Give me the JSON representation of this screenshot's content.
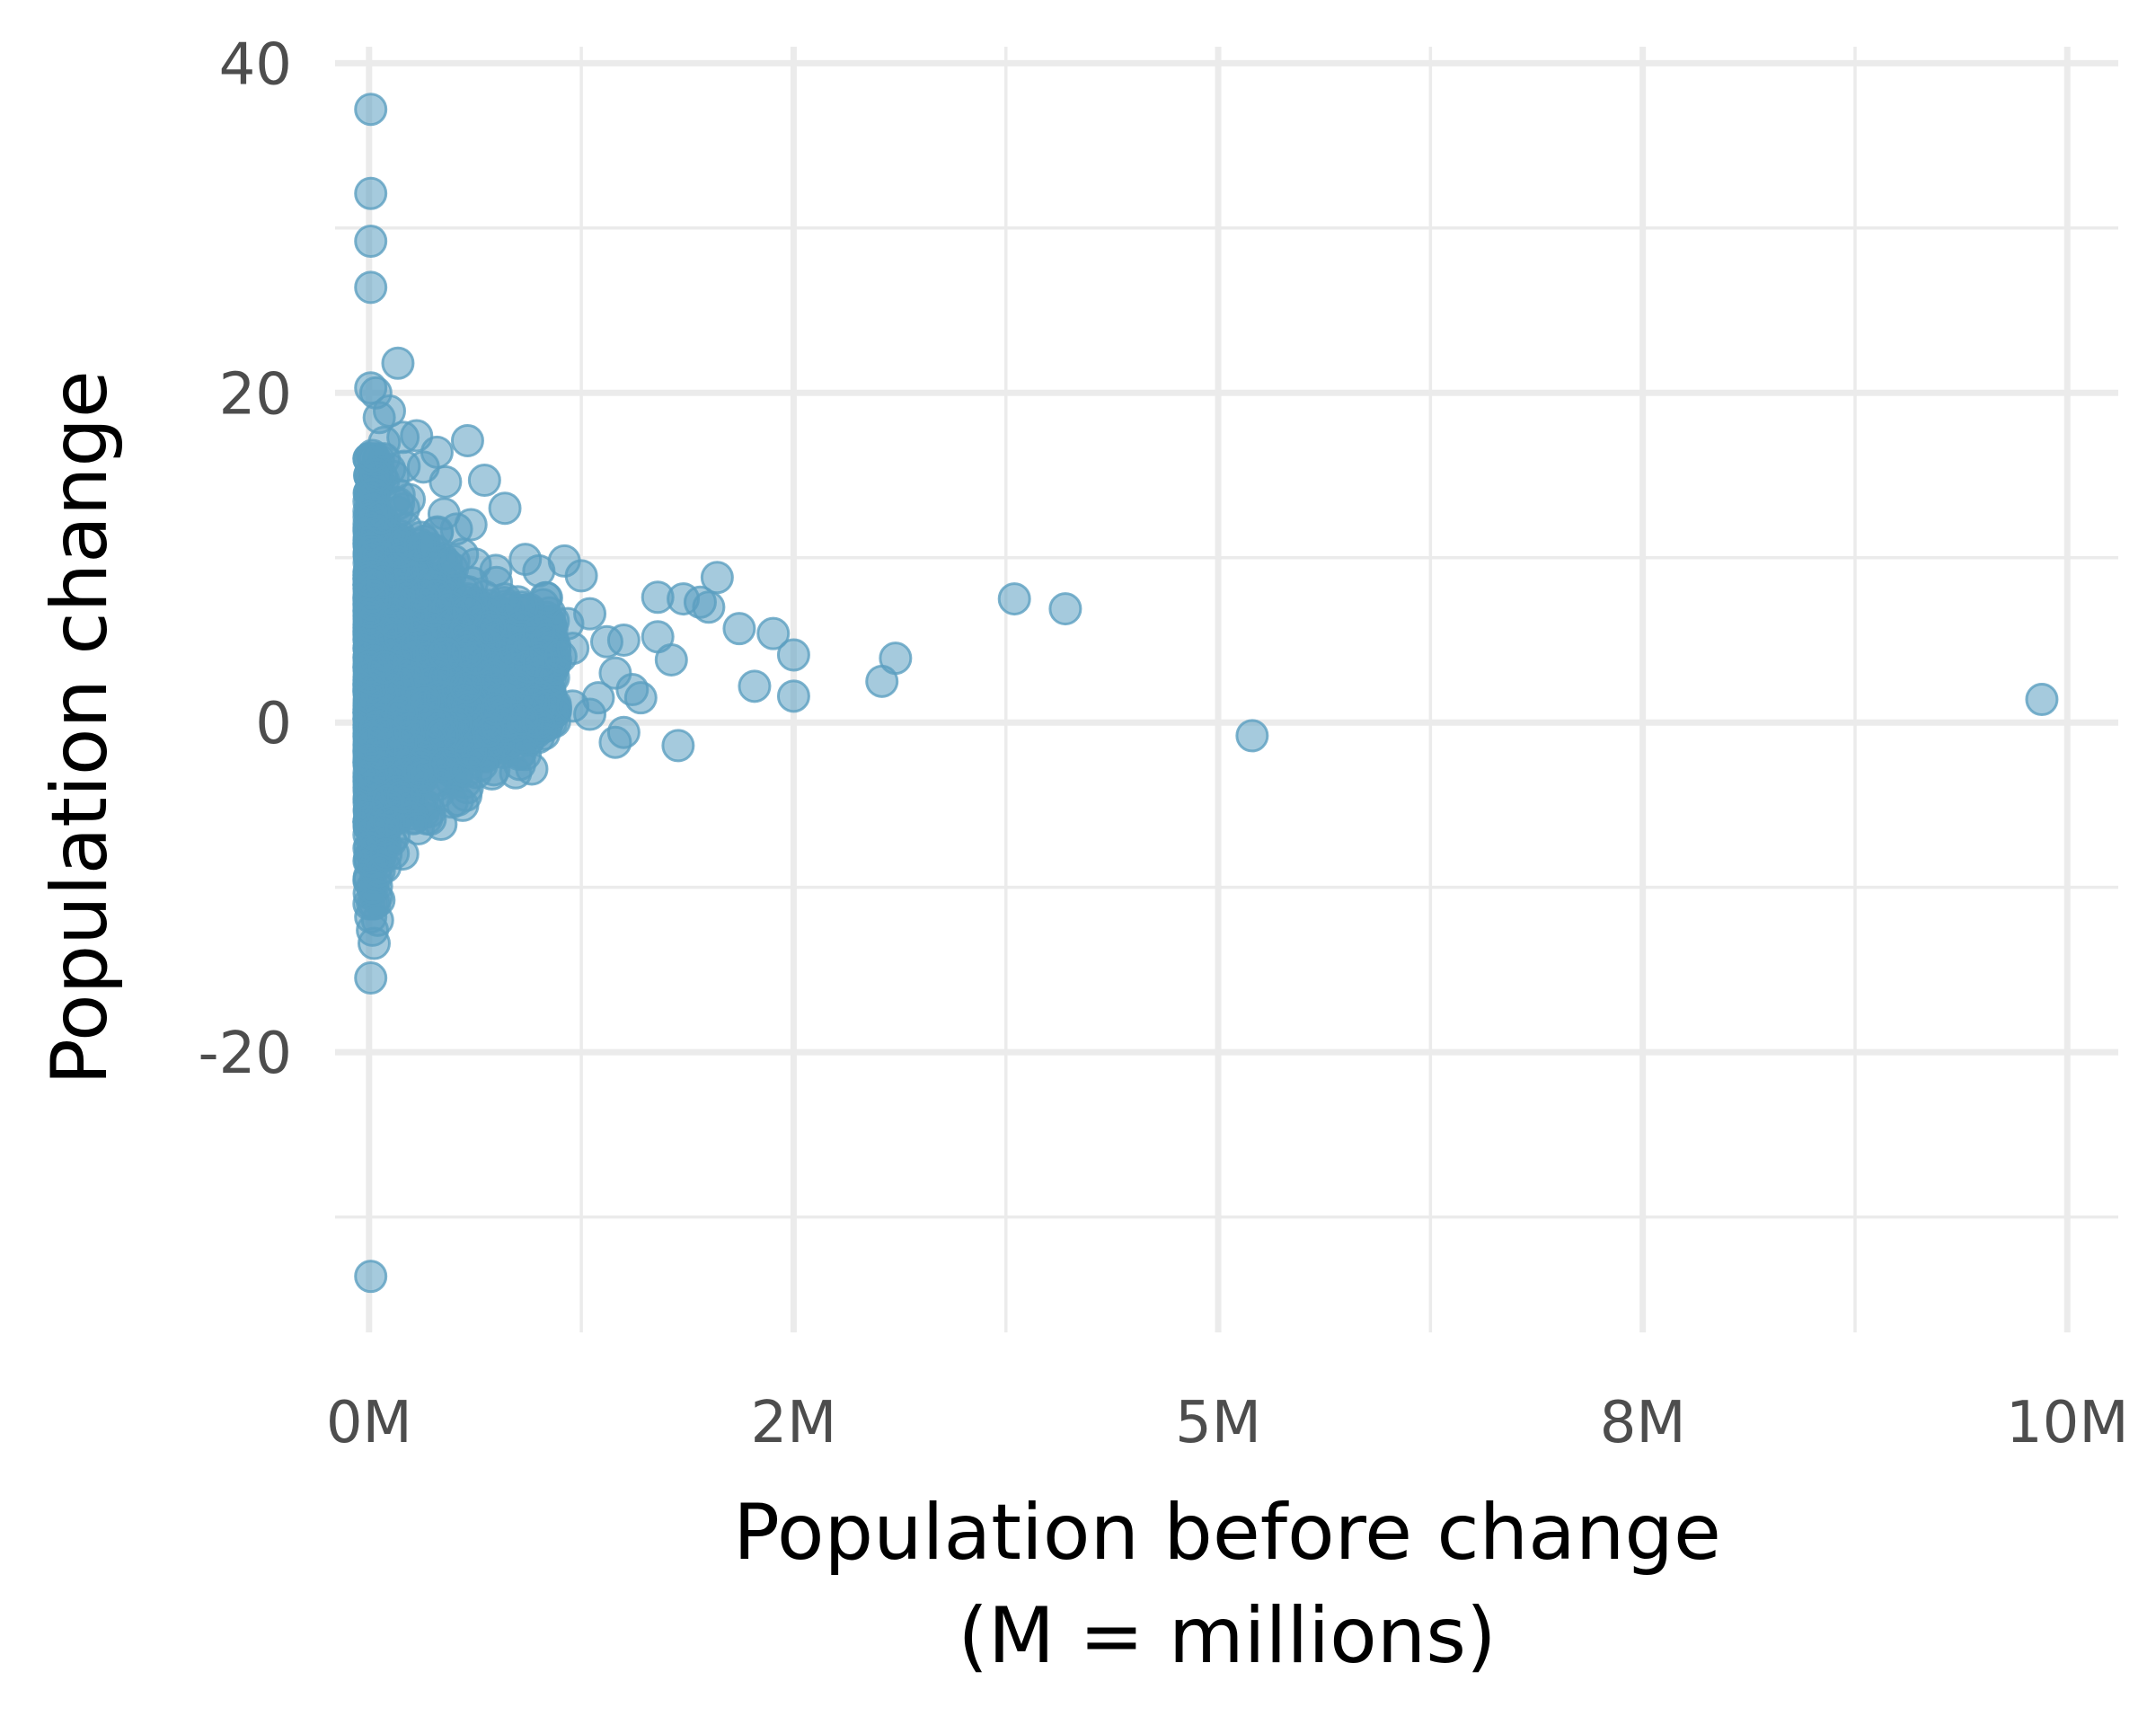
{
  "chart_data": {
    "type": "scatter",
    "title": "",
    "xlabel_lines": [
      "Population before change",
      "(M = millions)"
    ],
    "ylabel": "Population change",
    "xlim": [
      -0.2,
      10.3
    ],
    "ylim": [
      -37,
      41
    ],
    "x_ticks": [
      {
        "value": 0,
        "label": "0M"
      },
      {
        "value": 2.5,
        "label": "2M"
      },
      {
        "value": 5,
        "label": "5M"
      },
      {
        "value": 7.5,
        "label": "8M"
      },
      {
        "value": 10,
        "label": "10M"
      }
    ],
    "y_ticks": [
      {
        "value": -20,
        "label": "-20"
      },
      {
        "value": 0,
        "label": "0"
      },
      {
        "value": 20,
        "label": "20"
      },
      {
        "value": 40,
        "label": "40"
      }
    ],
    "grid": true,
    "legend": "none",
    "point_color": "#5b9fc1",
    "point_opacity": 0.55,
    "series": [
      {
        "x_unit": "millions",
        "points": [
          [
            0.01,
            37.2
          ],
          [
            0.01,
            32.1
          ],
          [
            0.01,
            29.2
          ],
          [
            0.01,
            26.4
          ],
          [
            0.01,
            20.3
          ],
          [
            0.04,
            20.0
          ],
          [
            0.17,
            21.8
          ],
          [
            0.06,
            18.5
          ],
          [
            0.12,
            18.9
          ],
          [
            0.02,
            16.2
          ],
          [
            0.2,
            17.3
          ],
          [
            0.28,
            17.4
          ],
          [
            0.09,
            17.0
          ],
          [
            0.4,
            16.4
          ],
          [
            0.58,
            17.1
          ],
          [
            0.32,
            15.5
          ],
          [
            0.68,
            14.7
          ],
          [
            0.45,
            14.6
          ],
          [
            0.8,
            13.0
          ],
          [
            0.6,
            12.0
          ],
          [
            0.4,
            11.5
          ],
          [
            0.3,
            10.8
          ],
          [
            0.55,
            10.2
          ],
          [
            0.5,
            9.8
          ],
          [
            0.92,
            9.9
          ],
          [
            1.15,
            9.8
          ],
          [
            1.25,
            8.9
          ],
          [
            1.0,
            9.2
          ],
          [
            0.75,
            8.5
          ],
          [
            0.8,
            7.5
          ],
          [
            0.9,
            7.0
          ],
          [
            1.3,
            6.6
          ],
          [
            1.17,
            6.0
          ],
          [
            1.0,
            5.5
          ],
          [
            1.05,
            5.0
          ],
          [
            1.2,
            4.5
          ],
          [
            1.13,
            4.0
          ],
          [
            1.0,
            3.7
          ],
          [
            1.4,
            4.9
          ],
          [
            1.5,
            5.0
          ],
          [
            1.45,
            3.0
          ],
          [
            1.55,
            2.0
          ],
          [
            1.6,
            1.5
          ],
          [
            1.35,
            1.5
          ],
          [
            1.2,
            1.0
          ],
          [
            1.3,
            0.5
          ],
          [
            1.45,
            -1.2
          ],
          [
            1.5,
            -0.6
          ],
          [
            1.0,
            0.0
          ],
          [
            0.8,
            -0.2
          ],
          [
            0.9,
            0.2
          ],
          [
            1.7,
            7.6
          ],
          [
            1.85,
            7.5
          ],
          [
            1.95,
            7.3
          ],
          [
            2.05,
            8.8
          ],
          [
            2.0,
            7.0
          ],
          [
            1.7,
            5.2
          ],
          [
            1.78,
            3.8
          ],
          [
            1.82,
            -1.4
          ],
          [
            2.18,
            5.7
          ],
          [
            2.27,
            2.2
          ],
          [
            2.38,
            5.4
          ],
          [
            2.5,
            4.1
          ],
          [
            2.5,
            1.6
          ],
          [
            3.02,
            2.5
          ],
          [
            3.1,
            3.9
          ],
          [
            3.8,
            7.5
          ],
          [
            4.1,
            6.9
          ],
          [
            5.2,
            -0.8
          ],
          [
            9.85,
            1.4
          ],
          [
            0.01,
            -11.8
          ],
          [
            0.02,
            -12.6
          ],
          [
            0.03,
            -13.4
          ],
          [
            0.01,
            -15.5
          ],
          [
            0.01,
            -33.6
          ],
          [
            0.05,
            -12.0
          ],
          [
            0.02,
            -10.0
          ],
          [
            0.06,
            -9.0
          ],
          [
            0.1,
            -8.0
          ],
          [
            0.12,
            -6.0
          ],
          [
            0.2,
            -4.5
          ],
          [
            0.3,
            -3.0
          ],
          [
            0.45,
            -2.5
          ],
          [
            0.6,
            -1.8
          ],
          [
            0.7,
            -0.5
          ],
          [
            0.75,
            0.8
          ]
        ]
      }
    ],
    "dense_cluster": {
      "count": 2000,
      "x_range": [
        0,
        1.1
      ],
      "y_range": [
        -11,
        16
      ]
    }
  }
}
